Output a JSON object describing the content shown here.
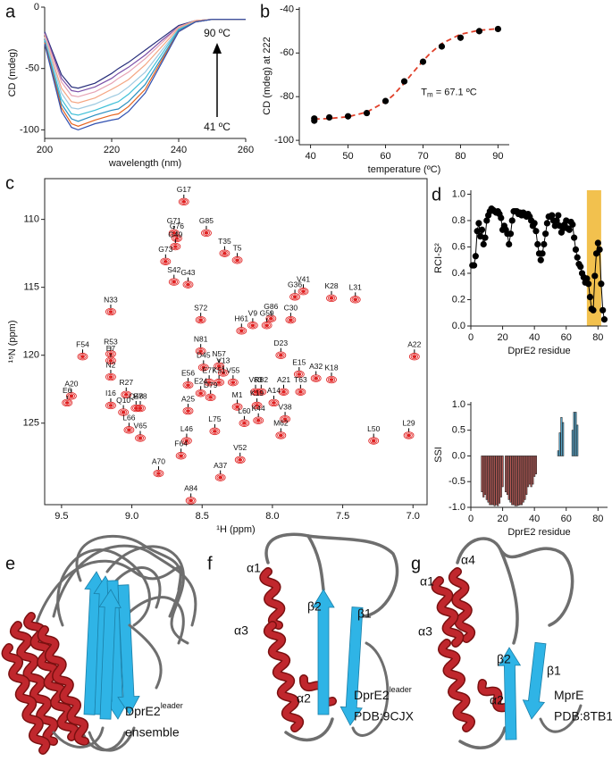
{
  "chart_data": [
    {
      "panel": "a",
      "type": "line",
      "x": [
        200,
        205,
        208,
        210,
        215,
        220,
        222,
        225,
        230,
        235,
        240,
        245,
        250,
        255,
        260
      ],
      "series": [
        {
          "color": "#262d7a",
          "values": [
            -20,
            -55,
            -65,
            -66,
            -62,
            -54,
            -50,
            -45,
            -35,
            -25,
            -15,
            -11,
            -10,
            -10,
            -10
          ]
        },
        {
          "color": "#7b4fa8",
          "values": [
            -21,
            -58,
            -68,
            -69,
            -65,
            -58,
            -54,
            -49,
            -39,
            -27,
            -16,
            -11,
            -10,
            -10,
            -10
          ]
        },
        {
          "color": "#e6a3b4",
          "values": [
            -22,
            -61,
            -72,
            -73,
            -69,
            -62,
            -58,
            -53,
            -42,
            -29,
            -16,
            -11,
            -10,
            -10,
            -10
          ]
        },
        {
          "color": "#f4a582",
          "values": [
            -24,
            -66,
            -77,
            -78,
            -74,
            -67,
            -64,
            -59,
            -47,
            -32,
            -17,
            -11,
            -10,
            -10,
            -10
          ]
        },
        {
          "color": "#9ecae1",
          "values": [
            -25,
            -70,
            -82,
            -83,
            -79,
            -73,
            -71,
            -65,
            -53,
            -35,
            -18,
            -12,
            -10,
            -10,
            -10
          ]
        },
        {
          "color": "#40c0d8",
          "values": [
            -27,
            -75,
            -87,
            -88,
            -84,
            -79,
            -77,
            -71,
            -58,
            -38,
            -18,
            -12,
            -10,
            -10,
            -10
          ]
        },
        {
          "color": "#2a8fc0",
          "values": [
            -28,
            -79,
            -91,
            -93,
            -88,
            -84,
            -83,
            -77,
            -63,
            -41,
            -19,
            -12,
            -10,
            -10,
            -10
          ]
        },
        {
          "color": "#e6641e",
          "values": [
            -29,
            -82,
            -95,
            -97,
            -92,
            -88,
            -87,
            -81,
            -67,
            -43,
            -20,
            -12,
            -10,
            -10,
            -10
          ]
        },
        {
          "color": "#3050b0",
          "values": [
            -30,
            -85,
            -98,
            -100,
            -95,
            -92,
            -91,
            -85,
            -70,
            -45,
            -20,
            -12,
            -10,
            -10,
            -10
          ]
        }
      ],
      "xlim": [
        200,
        260
      ],
      "ylim": [
        -107,
        0
      ],
      "xticks": [
        200,
        220,
        240,
        260
      ],
      "yticks": [
        0,
        -50,
        -100
      ],
      "xlabel": "wavelength (nm)",
      "ylabel": "CD (mdeg)",
      "annotations": [
        "90 ºC",
        "41 ºC"
      ]
    },
    {
      "panel": "b",
      "type": "scatter",
      "color": "#000000",
      "x": [
        41,
        41,
        45,
        50,
        55,
        60,
        65,
        70,
        75,
        80,
        85,
        90
      ],
      "values": [
        -91,
        -90,
        -89.5,
        -89,
        -87.5,
        -82,
        -73,
        -64,
        -57,
        -53,
        -50,
        -49
      ],
      "fit": {
        "color": "#e0402a",
        "x": [
          41,
          45,
          50,
          55,
          60,
          62,
          65,
          67,
          70,
          72,
          75,
          80,
          85,
          90
        ],
        "values": [
          -90.3,
          -90,
          -89.2,
          -87.1,
          -82.3,
          -79.4,
          -73.8,
          -69.6,
          -63.6,
          -60,
          -55.7,
          -51.4,
          -49.6,
          -48.9
        ]
      },
      "xlim": [
        37,
        93
      ],
      "ylim": [
        -102,
        -39
      ],
      "xticks": [
        40,
        50,
        60,
        70,
        80,
        90
      ],
      "yticks": [
        -100,
        -80,
        -60,
        -40
      ],
      "xlabel": "temperature (ºC)",
      "ylabel": "CD (mdeg) at 222",
      "annotation": {
        "text": "T",
        "subscript": "m",
        "rest": " = 67.1 ºC"
      }
    },
    {
      "panel": "c",
      "type": "scatter",
      "marker": "contour",
      "color": "#e02020",
      "frame": true,
      "labels": [
        "G17",
        "G71",
        "G85",
        "G76",
        "G49",
        "G73",
        "T35",
        "T5",
        "G43",
        "S42",
        "N33",
        "G36",
        "V41",
        "K28",
        "L31",
        "S72",
        "V9",
        "G86",
        "C30",
        "H61",
        "G59",
        "F54",
        "R53",
        "E7",
        "N81",
        "D23",
        "A22",
        "N57",
        "A20",
        "D45",
        "V13",
        "E15",
        "K18",
        "N2",
        "K51",
        "R27",
        "E77",
        "V55",
        "A32",
        "E56",
        "R82",
        "V83",
        "E24",
        "I16",
        "E78",
        "A21",
        "T63",
        "D79",
        "Q48",
        "A25",
        "M1",
        "K19",
        "A14",
        "Q10",
        "E6",
        "V38",
        "K44",
        "L29",
        "L66",
        "L75",
        "L60",
        "L46",
        "M62",
        "L50",
        "V65",
        "F64",
        "V52",
        "A70",
        "A37",
        "A84"
      ],
      "x": [
        8.63,
        8.7,
        8.47,
        8.68,
        8.69,
        8.76,
        8.34,
        8.25,
        8.6,
        8.7,
        9.15,
        7.84,
        7.78,
        7.58,
        7.41,
        8.51,
        8.14,
        8.01,
        7.87,
        8.22,
        8.04,
        9.35,
        9.15,
        9.15,
        8.51,
        7.94,
        6.99,
        8.38,
        9.43,
        8.49,
        8.35,
        7.81,
        7.58,
        9.15,
        8.38,
        9.04,
        8.45,
        8.28,
        7.69,
        8.6,
        8.08,
        8.12,
        8.51,
        9.15,
        8.94,
        7.92,
        7.8,
        8.44,
        8.97,
        8.6,
        8.25,
        8.11,
        7.99,
        9.06,
        9.46,
        7.91,
        8.1,
        7.03,
        9.02,
        8.41,
        8.2,
        8.61,
        7.94,
        7.28,
        8.94,
        8.65,
        8.23,
        8.81,
        8.37,
        8.58
      ],
      "values": [
        108.7,
        111.0,
        111.0,
        111.4,
        112.0,
        113.1,
        112.5,
        113.0,
        114.8,
        114.6,
        116.8,
        115.7,
        115.3,
        115.8,
        115.9,
        117.4,
        117.8,
        117.3,
        117.4,
        118.2,
        117.8,
        120.1,
        119.9,
        120.4,
        119.7,
        120.0,
        120.1,
        120.8,
        123.0,
        120.9,
        121.3,
        121.4,
        121.8,
        121.6,
        122.0,
        122.9,
        122.0,
        122.0,
        121.7,
        122.2,
        122.7,
        122.7,
        122.8,
        123.7,
        123.9,
        122.7,
        122.7,
        123.1,
        123.9,
        124.1,
        123.8,
        123.7,
        123.5,
        124.2,
        123.5,
        124.7,
        124.8,
        125.9,
        125.5,
        125.6,
        125.0,
        126.3,
        125.9,
        126.3,
        126.1,
        127.4,
        127.7,
        128.7,
        129.0,
        130.7
      ],
      "xlim": [
        9.62,
        6.9
      ],
      "ylim": [
        131,
        107
      ],
      "xticks": [
        9.5,
        {
          "value": 9,
          "label": "9.0"
        },
        8.5,
        {
          "value": 8,
          "label": "8.0"
        },
        7.5,
        {
          "value": 7,
          "label": "7.0"
        }
      ],
      "yticks": [
        110,
        115,
        120,
        125
      ],
      "xlabel": "¹H (ppm)",
      "ylabel": "¹⁵N (ppm)"
    },
    {
      "panel": "d",
      "type": "line",
      "markers": true,
      "x": [
        1,
        2,
        3,
        4,
        5,
        6,
        7,
        8,
        9,
        10,
        11,
        12,
        13,
        14,
        15,
        16,
        17,
        18,
        19,
        20,
        21,
        22,
        23,
        24,
        25,
        26,
        27,
        28,
        29,
        30,
        31,
        32,
        33,
        34,
        35,
        36,
        37,
        38,
        39,
        40,
        41,
        42,
        43,
        44,
        45,
        46,
        47,
        48,
        49,
        50,
        51,
        52,
        53,
        54,
        55,
        56,
        57,
        58,
        59,
        60,
        61,
        62,
        63,
        64,
        65,
        66,
        67,
        68,
        69,
        70,
        71,
        72,
        73,
        74,
        75,
        76,
        77,
        78,
        79,
        80,
        81,
        82,
        83,
        84
      ],
      "series": [
        {
          "color": "#000000",
          "values": [
            0.46,
            0.46,
            0.53,
            0.72,
            0.78,
            0.68,
            0.73,
            0.62,
            0.67,
            0.8,
            0.84,
            0.87,
            0.89,
            0.88,
            0.87,
            0.86,
            0.87,
            0.85,
            0.82,
            0.73,
            0.76,
            0.73,
            0.7,
            0.62,
            0.7,
            0.8,
            0.87,
            0.87,
            0.87,
            0.85,
            0.86,
            0.84,
            0.86,
            0.85,
            0.83,
            0.85,
            0.83,
            0.8,
            0.76,
            0.78,
            0.72,
            0.62,
            0.55,
            0.5,
            0.55,
            0.62,
            0.7,
            0.78,
            0.83,
            0.83,
            0.84,
            0.8,
            0.76,
            0.8,
            0.84,
            0.76,
            0.71,
            0.74,
            0.77,
            0.8,
            0.74,
            0.73,
            0.79,
            0.77,
            0.67,
            0.58,
            0.52,
            0.47,
            0.45,
            0.4,
            0.37,
            0.33,
            0.36,
            0.32,
            0.22,
            0.13,
            0.12,
            0.38,
            0.55,
            0.63,
            0.58,
            0.32,
            0.12,
            0.05
          ]
        }
      ],
      "highlight": {
        "range": [
          73,
          82
        ],
        "color": "#f2c14e"
      },
      "xlim": [
        0,
        86
      ],
      "ylim": [
        0,
        1.03
      ],
      "xticks": [
        0,
        20,
        40,
        60,
        80
      ],
      "yticks": [
        {
          "value": 0,
          "label": "0.0"
        },
        0.2,
        0.4,
        0.6,
        0.8,
        {
          "value": 1,
          "label": "1.0"
        }
      ],
      "xlabel": "DprE2 residue",
      "ylabel": "RCI-S²"
    },
    {
      "type": "bar",
      "series": [
        {
          "color": "#c9605c",
          "x": [
            7,
            8,
            9,
            10,
            11,
            12,
            13,
            14,
            15,
            16,
            17,
            18,
            19,
            20,
            22,
            23,
            24,
            25,
            26,
            27,
            28,
            29,
            30,
            31,
            32,
            33,
            34,
            35,
            36,
            37,
            38,
            39,
            40,
            41
          ],
          "values": [
            -0.7,
            -0.8,
            -0.75,
            -0.85,
            -0.9,
            -0.95,
            -0.95,
            -0.95,
            -0.97,
            -0.95,
            -0.97,
            -0.92,
            -0.8,
            -0.6,
            -0.7,
            -0.75,
            -0.85,
            -0.9,
            -0.95,
            -0.95,
            -0.97,
            -0.97,
            -0.96,
            -0.95,
            -0.95,
            -0.9,
            -0.85,
            -0.75,
            -0.6,
            -0.55,
            -0.6,
            -0.55,
            -0.4,
            -0.35
          ]
        },
        {
          "color": "#5fb8e0",
          "x": [
            55,
            56,
            57,
            58,
            64,
            65,
            66,
            67
          ],
          "values": [
            0.1,
            0.45,
            0.75,
            0.65,
            0.5,
            0.85,
            0.85,
            0.6
          ]
        }
      ],
      "xlim": [
        0,
        86
      ],
      "ylim": [
        -1,
        1.05
      ],
      "xticks": [
        0,
        20,
        40,
        60,
        80
      ],
      "yticks": [
        {
          "value": -1,
          "label": "-1.0"
        },
        -0.5,
        {
          "value": 0,
          "label": "0.0"
        },
        0.5,
        {
          "value": 1,
          "label": "1.0"
        }
      ],
      "xlabel": "DprE2 residue",
      "ylabel": "SSI"
    }
  ],
  "structures": [
    {
      "panel": "e",
      "name": "DprE2",
      "superscript": "leader",
      "caption": "ensemble"
    },
    {
      "panel": "f",
      "name": "DprE2",
      "superscript": "leader",
      "caption": "PDB:9CJX",
      "labels": [
        "α1",
        "α3",
        "β2",
        "β1",
        "α2"
      ]
    },
    {
      "panel": "g",
      "name": "MprE",
      "caption": "PDB:8TB1",
      "labels": [
        "α4",
        "α1",
        "α3",
        "β2",
        "β1",
        "α2"
      ]
    }
  ]
}
